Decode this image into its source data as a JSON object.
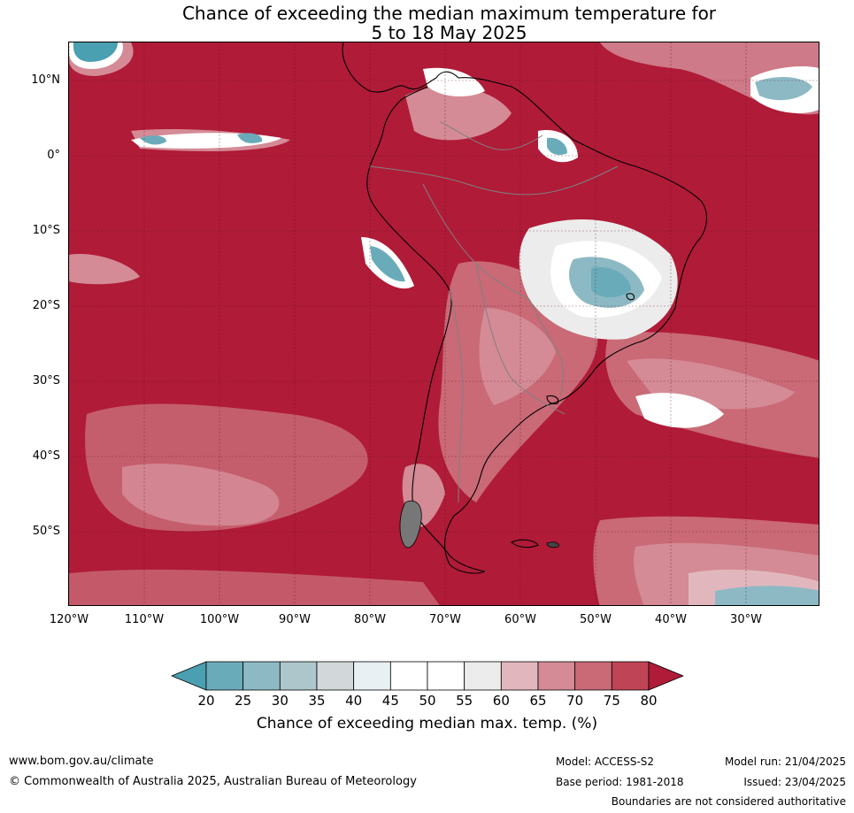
{
  "title_line1": "Chance of exceeding the median maximum temperature for",
  "title_line2": "5 to 18 May 2025",
  "lat_labels": [
    "10°N",
    "0°",
    "10°S",
    "20°S",
    "30°S",
    "40°S",
    "50°S"
  ],
  "lon_labels": [
    "120°W",
    "110°W",
    "100°W",
    "90°W",
    "80°W",
    "70°W",
    "60°W",
    "50°W",
    "40°W",
    "30°W"
  ],
  "legend": {
    "ticks": [
      "20",
      "25",
      "30",
      "35",
      "40",
      "45",
      "50",
      "55",
      "60",
      "65",
      "70",
      "75",
      "80"
    ],
    "colors": [
      "#4a9fb0",
      "#6aabba",
      "#8db9c4",
      "#adc6cc",
      "#d2d8da",
      "#e9f0f3",
      "#ffffff",
      "#ffffff",
      "#ececec",
      "#e1b7bd",
      "#d48b96",
      "#c96a76",
      "#bf4456",
      "#b01b38"
    ],
    "title": "Chance of exceeding median max. temp. (%)"
  },
  "footer": {
    "url": "www.bom.gov.au/climate",
    "copyright": "© Commonwealth of Australia 2025, Australian Bureau of Meteorology",
    "model": "Model: ACCESS-S2",
    "model_run": "Model run: 21/04/2025",
    "base_period": "Base period: 1981-2018",
    "issued": "Issued: 23/04/2025",
    "disclaimer": "Boundaries are not considered authoritative"
  },
  "map_colors": {
    "dominant": "#b01b38",
    "land_outline": "#000000",
    "border": "#808080"
  }
}
